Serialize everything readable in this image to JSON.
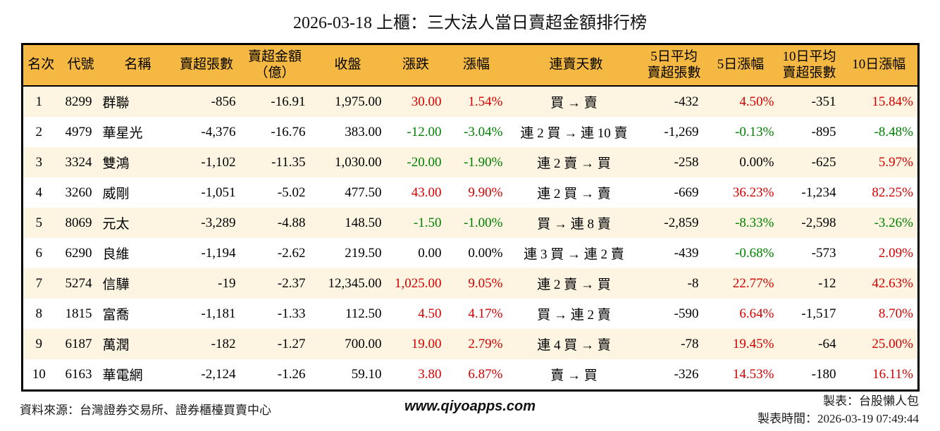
{
  "title": "2026-03-18 上櫃：三大法人當日賣超金額排行榜",
  "colors": {
    "up_red": "#d40000",
    "down_green": "#008000",
    "neutral": "#000000",
    "header_bg": "#f5b842",
    "row_alt_bg": "#fdf5e2",
    "table_border": "#000000"
  },
  "table": {
    "columns": [
      {
        "label": "名次"
      },
      {
        "label": "代號"
      },
      {
        "label": "名稱"
      },
      {
        "label": "賣超張數"
      },
      {
        "label": "賣超金額\n（億）"
      },
      {
        "label": "收盤"
      },
      {
        "label": "漲跌"
      },
      {
        "label": "漲幅"
      },
      {
        "label": "連賣天數"
      },
      {
        "label": "5日平均\n賣超張數"
      },
      {
        "label": "5日漲幅"
      },
      {
        "label": "10日平均\n賣超張數"
      },
      {
        "label": "10日漲幅"
      }
    ],
    "rows": [
      {
        "rank": "1",
        "code": "8299",
        "name": "群聯",
        "sell_volume": "-856",
        "sell_amount": "-16.91",
        "close": "1,975.00",
        "change": {
          "text": "30.00",
          "tone": "up"
        },
        "change_pct": {
          "text": "1.54%",
          "tone": "up"
        },
        "streak": "買 → 賣",
        "avg5_volume": "-432",
        "pct5": {
          "text": "4.50%",
          "tone": "up"
        },
        "avg10_volume": "-351",
        "pct10": {
          "text": "15.84%",
          "tone": "up"
        }
      },
      {
        "rank": "2",
        "code": "4979",
        "name": "華星光",
        "sell_volume": "-4,376",
        "sell_amount": "-16.76",
        "close": "383.00",
        "change": {
          "text": "-12.00",
          "tone": "down"
        },
        "change_pct": {
          "text": "-3.04%",
          "tone": "down"
        },
        "streak": "連 2 買 → 連 10 賣",
        "avg5_volume": "-1,269",
        "pct5": {
          "text": "-0.13%",
          "tone": "down"
        },
        "avg10_volume": "-895",
        "pct10": {
          "text": "-8.48%",
          "tone": "down"
        }
      },
      {
        "rank": "3",
        "code": "3324",
        "name": "雙鴻",
        "sell_volume": "-1,102",
        "sell_amount": "-11.35",
        "close": "1,030.00",
        "change": {
          "text": "-20.00",
          "tone": "down"
        },
        "change_pct": {
          "text": "-1.90%",
          "tone": "down"
        },
        "streak": "連 2 賣 → 買",
        "avg5_volume": "-258",
        "pct5": {
          "text": "0.00%",
          "tone": "flat"
        },
        "avg10_volume": "-625",
        "pct10": {
          "text": "5.97%",
          "tone": "up"
        }
      },
      {
        "rank": "4",
        "code": "3260",
        "name": "威剛",
        "sell_volume": "-1,051",
        "sell_amount": "-5.02",
        "close": "477.50",
        "change": {
          "text": "43.00",
          "tone": "up"
        },
        "change_pct": {
          "text": "9.90%",
          "tone": "up"
        },
        "streak": "連 2 買 → 賣",
        "avg5_volume": "-669",
        "pct5": {
          "text": "36.23%",
          "tone": "up"
        },
        "avg10_volume": "-1,234",
        "pct10": {
          "text": "82.25%",
          "tone": "up"
        }
      },
      {
        "rank": "5",
        "code": "8069",
        "name": "元太",
        "sell_volume": "-3,289",
        "sell_amount": "-4.88",
        "close": "148.50",
        "change": {
          "text": "-1.50",
          "tone": "down"
        },
        "change_pct": {
          "text": "-1.00%",
          "tone": "down"
        },
        "streak": "買 → 連 8 賣",
        "avg5_volume": "-2,859",
        "pct5": {
          "text": "-8.33%",
          "tone": "down"
        },
        "avg10_volume": "-2,598",
        "pct10": {
          "text": "-3.26%",
          "tone": "down"
        }
      },
      {
        "rank": "6",
        "code": "6290",
        "name": "良維",
        "sell_volume": "-1,194",
        "sell_amount": "-2.62",
        "close": "219.50",
        "change": {
          "text": "0.00",
          "tone": "flat"
        },
        "change_pct": {
          "text": "0.00%",
          "tone": "flat"
        },
        "streak": "連 3 買 → 連 2 賣",
        "avg5_volume": "-439",
        "pct5": {
          "text": "-0.68%",
          "tone": "down"
        },
        "avg10_volume": "-573",
        "pct10": {
          "text": "2.09%",
          "tone": "up"
        }
      },
      {
        "rank": "7",
        "code": "5274",
        "name": "信驊",
        "sell_volume": "-19",
        "sell_amount": "-2.37",
        "close": "12,345.00",
        "change": {
          "text": "1,025.00",
          "tone": "up"
        },
        "change_pct": {
          "text": "9.05%",
          "tone": "up"
        },
        "streak": "連 2 賣 → 買",
        "avg5_volume": "-8",
        "pct5": {
          "text": "22.77%",
          "tone": "up"
        },
        "avg10_volume": "-12",
        "pct10": {
          "text": "42.63%",
          "tone": "up"
        }
      },
      {
        "rank": "8",
        "code": "1815",
        "name": "富喬",
        "sell_volume": "-1,181",
        "sell_amount": "-1.33",
        "close": "112.50",
        "change": {
          "text": "4.50",
          "tone": "up"
        },
        "change_pct": {
          "text": "4.17%",
          "tone": "up"
        },
        "streak": "買 → 連 2 賣",
        "avg5_volume": "-590",
        "pct5": {
          "text": "6.64%",
          "tone": "up"
        },
        "avg10_volume": "-1,517",
        "pct10": {
          "text": "8.70%",
          "tone": "up"
        }
      },
      {
        "rank": "9",
        "code": "6187",
        "name": "萬潤",
        "sell_volume": "-182",
        "sell_amount": "-1.27",
        "close": "700.00",
        "change": {
          "text": "19.00",
          "tone": "up"
        },
        "change_pct": {
          "text": "2.79%",
          "tone": "up"
        },
        "streak": "連 4 買 → 賣",
        "avg5_volume": "-78",
        "pct5": {
          "text": "19.45%",
          "tone": "up"
        },
        "avg10_volume": "-64",
        "pct10": {
          "text": "25.00%",
          "tone": "up"
        }
      },
      {
        "rank": "10",
        "code": "6163",
        "name": "華電網",
        "sell_volume": "-2,124",
        "sell_amount": "-1.26",
        "close": "59.10",
        "change": {
          "text": "3.80",
          "tone": "up"
        },
        "change_pct": {
          "text": "6.87%",
          "tone": "up"
        },
        "streak": "賣 → 買",
        "avg5_volume": "-326",
        "pct5": {
          "text": "14.53%",
          "tone": "up"
        },
        "avg10_volume": "-180",
        "pct10": {
          "text": "16.11%",
          "tone": "up"
        }
      }
    ]
  },
  "footer": {
    "source": "資料來源：台灣證券交易所、證券櫃檯買賣中心",
    "website": "www.qiyoapps.com",
    "author": "製表：台股懶人包",
    "generated_at": "製表時間：2026-03-19 07:49:44"
  }
}
